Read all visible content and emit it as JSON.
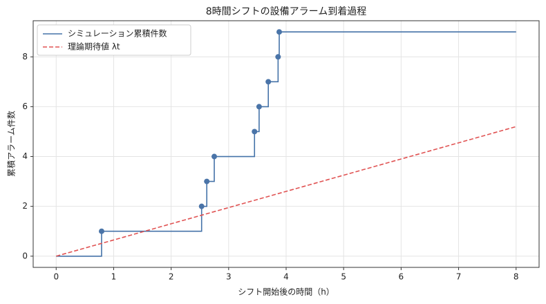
{
  "chart_data": {
    "type": "step",
    "title": "8時間シフトの設備アラーム到着過程",
    "xlabel": "シフト開始後の時間（h）",
    "ylabel": "累積アラーム件数",
    "xlim": [
      -0.4,
      8.4
    ],
    "xticks": [
      0,
      1,
      2,
      3,
      4,
      5,
      6,
      7,
      8
    ],
    "ylim": [
      -0.45,
      9.45
    ],
    "yticks": [
      0,
      2,
      4,
      6,
      8
    ],
    "grid": true,
    "legend": "upper left",
    "series": [
      {
        "name": "シミュレーション累積件数",
        "color": "#4472a8",
        "style": "solid",
        "x": [
          0,
          0.79,
          2.53,
          2.62,
          2.75,
          3.45,
          3.53,
          3.69,
          3.86,
          3.88,
          8
        ],
        "values": [
          0,
          1,
          2,
          3,
          4,
          5,
          6,
          7,
          8,
          9,
          9
        ]
      },
      {
        "name": "理論期待値 λt",
        "color": "#e05252",
        "style": "dashed",
        "x": [
          0,
          8
        ],
        "values": [
          0,
          5.2
        ]
      }
    ],
    "arrivals": {
      "color": "#4a74a8",
      "x": [
        0.79,
        2.53,
        2.62,
        2.75,
        3.45,
        3.53,
        3.69,
        3.86,
        3.88
      ],
      "values": [
        1,
        2,
        3,
        4,
        5,
        6,
        7,
        8,
        9
      ]
    }
  }
}
